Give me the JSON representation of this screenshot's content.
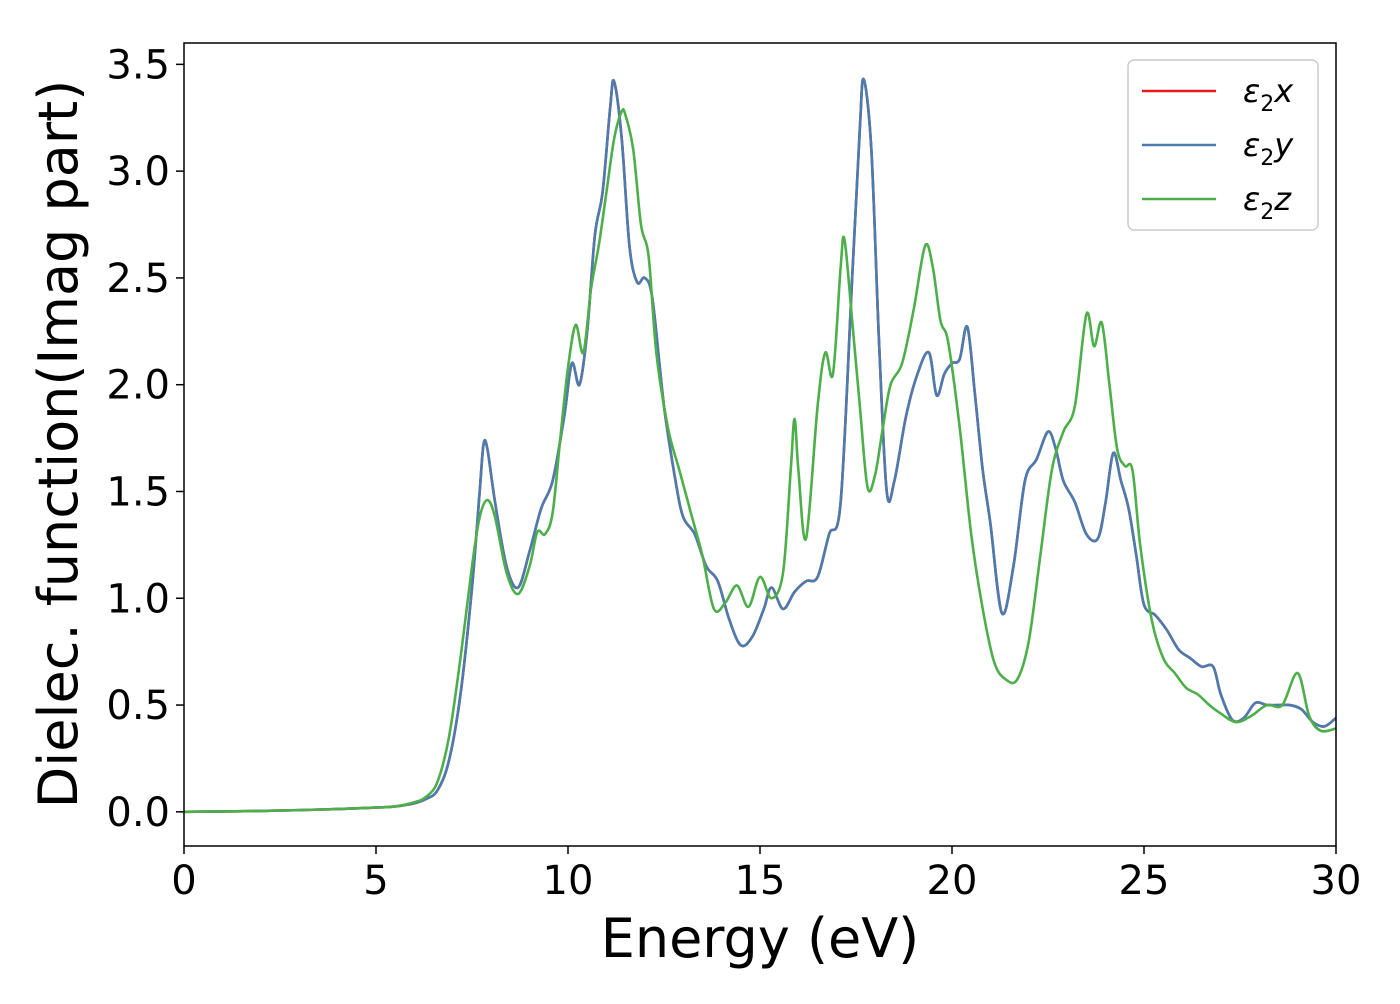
{
  "chart_data": {
    "type": "line",
    "xlabel": "Energy (eV)",
    "ylabel": "Dielec. function(Imag part)",
    "xlim": [
      0,
      30
    ],
    "ylim": [
      -0.16,
      3.6
    ],
    "xticks": [
      0,
      5,
      10,
      15,
      20,
      25,
      30
    ],
    "xtick_labels": [
      "0",
      "5",
      "10",
      "15",
      "20",
      "25",
      "30"
    ],
    "yticks": [
      0.0,
      0.5,
      1.0,
      1.5,
      2.0,
      2.5,
      3.0,
      3.5
    ],
    "ytick_labels": [
      "0.0",
      "0.5",
      "1.0",
      "1.5",
      "2.0",
      "2.5",
      "3.0",
      "3.5"
    ],
    "grid": false,
    "legend_position": "top-right",
    "series": [
      {
        "name": "ε₂x",
        "legend": {
          "base": "ε",
          "sub": "2",
          "suffix": "x"
        },
        "color": "#e41a1c",
        "x": [
          0,
          1,
          2,
          3,
          4,
          5,
          5.5,
          6,
          6.3,
          6.6,
          6.9,
          7.2,
          7.5,
          7.7,
          7.8,
          7.9,
          8.1,
          8.4,
          8.7,
          9.0,
          9.3,
          9.6,
          9.9,
          10.1,
          10.3,
          10.5,
          10.7,
          10.9,
          11.1,
          11.2,
          11.4,
          11.6,
          11.8,
          12.0,
          12.2,
          12.5,
          12.8,
          13.0,
          13.3,
          13.6,
          13.9,
          14.2,
          14.5,
          14.8,
          15.1,
          15.3,
          15.6,
          15.9,
          16.2,
          16.5,
          16.8,
          17.1,
          17.4,
          17.6,
          17.7,
          17.9,
          18.1,
          18.3,
          18.5,
          18.8,
          19.1,
          19.4,
          19.6,
          19.8,
          20.0,
          20.2,
          20.4,
          20.6,
          20.8,
          21.0,
          21.3,
          21.6,
          21.9,
          22.2,
          22.5,
          22.7,
          22.9,
          23.2,
          23.5,
          23.8,
          24.0,
          24.2,
          24.4,
          24.6,
          24.8,
          25.0,
          25.3,
          25.6,
          25.9,
          26.2,
          26.5,
          26.8,
          27.0,
          27.3,
          27.6,
          27.9,
          28.2,
          28.5,
          28.8,
          29.1,
          29.4,
          29.7,
          30.0
        ],
        "y": [
          0.0,
          0.002,
          0.004,
          0.008,
          0.013,
          0.02,
          0.025,
          0.04,
          0.06,
          0.1,
          0.24,
          0.55,
          1.05,
          1.5,
          1.72,
          1.7,
          1.45,
          1.15,
          1.05,
          1.22,
          1.42,
          1.55,
          1.85,
          2.1,
          2.0,
          2.25,
          2.7,
          2.9,
          3.3,
          3.42,
          3.15,
          2.65,
          2.48,
          2.5,
          2.4,
          1.9,
          1.55,
          1.38,
          1.3,
          1.15,
          1.08,
          0.9,
          0.78,
          0.82,
          0.95,
          1.05,
          0.95,
          1.03,
          1.08,
          1.1,
          1.3,
          1.45,
          2.5,
          3.2,
          3.43,
          3.1,
          2.2,
          1.5,
          1.55,
          1.85,
          2.05,
          2.15,
          1.95,
          2.05,
          2.1,
          2.12,
          2.27,
          1.95,
          1.6,
          1.35,
          0.93,
          1.15,
          1.55,
          1.65,
          1.78,
          1.7,
          1.55,
          1.45,
          1.3,
          1.28,
          1.45,
          1.68,
          1.55,
          1.42,
          1.2,
          0.97,
          0.92,
          0.85,
          0.76,
          0.72,
          0.68,
          0.68,
          0.55,
          0.43,
          0.44,
          0.51,
          0.5,
          0.5,
          0.5,
          0.48,
          0.42,
          0.4,
          0.44
        ]
      },
      {
        "name": "ε₂y",
        "legend": {
          "base": "ε",
          "sub": "2",
          "suffix": "y"
        },
        "color": "#4a7cb0",
        "x": [
          0,
          1,
          2,
          3,
          4,
          5,
          5.5,
          6,
          6.3,
          6.6,
          6.9,
          7.2,
          7.5,
          7.7,
          7.8,
          7.9,
          8.1,
          8.4,
          8.7,
          9.0,
          9.3,
          9.6,
          9.9,
          10.1,
          10.3,
          10.5,
          10.7,
          10.9,
          11.1,
          11.2,
          11.4,
          11.6,
          11.8,
          12.0,
          12.2,
          12.5,
          12.8,
          13.0,
          13.3,
          13.6,
          13.9,
          14.2,
          14.5,
          14.8,
          15.1,
          15.3,
          15.6,
          15.9,
          16.2,
          16.5,
          16.8,
          17.1,
          17.4,
          17.6,
          17.7,
          17.9,
          18.1,
          18.3,
          18.5,
          18.8,
          19.1,
          19.4,
          19.6,
          19.8,
          20.0,
          20.2,
          20.4,
          20.6,
          20.8,
          21.0,
          21.3,
          21.6,
          21.9,
          22.2,
          22.5,
          22.7,
          22.9,
          23.2,
          23.5,
          23.8,
          24.0,
          24.2,
          24.4,
          24.6,
          24.8,
          25.0,
          25.3,
          25.6,
          25.9,
          26.2,
          26.5,
          26.8,
          27.0,
          27.3,
          27.6,
          27.9,
          28.2,
          28.5,
          28.8,
          29.1,
          29.4,
          29.7,
          30.0
        ],
        "y": [
          0.0,
          0.002,
          0.004,
          0.008,
          0.013,
          0.02,
          0.025,
          0.04,
          0.06,
          0.1,
          0.24,
          0.55,
          1.05,
          1.5,
          1.72,
          1.7,
          1.45,
          1.15,
          1.05,
          1.22,
          1.42,
          1.55,
          1.85,
          2.1,
          2.0,
          2.25,
          2.7,
          2.9,
          3.3,
          3.42,
          3.15,
          2.65,
          2.48,
          2.5,
          2.4,
          1.9,
          1.55,
          1.38,
          1.3,
          1.15,
          1.08,
          0.9,
          0.78,
          0.82,
          0.95,
          1.05,
          0.95,
          1.03,
          1.08,
          1.1,
          1.3,
          1.45,
          2.5,
          3.2,
          3.43,
          3.1,
          2.2,
          1.5,
          1.55,
          1.85,
          2.05,
          2.15,
          1.95,
          2.05,
          2.1,
          2.12,
          2.27,
          1.95,
          1.6,
          1.35,
          0.93,
          1.15,
          1.55,
          1.65,
          1.78,
          1.7,
          1.55,
          1.45,
          1.3,
          1.28,
          1.45,
          1.68,
          1.55,
          1.42,
          1.2,
          0.97,
          0.92,
          0.85,
          0.76,
          0.72,
          0.68,
          0.68,
          0.55,
          0.43,
          0.44,
          0.51,
          0.5,
          0.5,
          0.5,
          0.48,
          0.42,
          0.4,
          0.44
        ]
      },
      {
        "name": "ε₂z",
        "legend": {
          "base": "ε",
          "sub": "2",
          "suffix": "z"
        },
        "color": "#4daf4a",
        "x": [
          0,
          1,
          2,
          3,
          4,
          5,
          5.5,
          6,
          6.3,
          6.6,
          6.9,
          7.2,
          7.5,
          7.7,
          7.9,
          8.1,
          8.4,
          8.7,
          9.0,
          9.2,
          9.4,
          9.6,
          9.8,
          10.0,
          10.2,
          10.4,
          10.6,
          10.8,
          11.0,
          11.2,
          11.4,
          11.5,
          11.7,
          11.9,
          12.1,
          12.3,
          12.6,
          12.9,
          13.2,
          13.5,
          13.8,
          14.1,
          14.4,
          14.7,
          15.0,
          15.3,
          15.6,
          15.8,
          15.9,
          16.0,
          16.2,
          16.5,
          16.7,
          16.9,
          17.1,
          17.2,
          17.4,
          17.6,
          17.8,
          18.0,
          18.2,
          18.4,
          18.7,
          19.0,
          19.3,
          19.5,
          19.7,
          19.9,
          20.2,
          20.5,
          20.8,
          21.1,
          21.4,
          21.7,
          22.0,
          22.3,
          22.6,
          22.9,
          23.2,
          23.5,
          23.7,
          23.9,
          24.1,
          24.3,
          24.5,
          24.7,
          24.9,
          25.2,
          25.5,
          25.8,
          26.1,
          26.4,
          26.7,
          27.0,
          27.4,
          27.8,
          28.2,
          28.6,
          29.0,
          29.3,
          29.6,
          30.0
        ],
        "y": [
          0.0,
          0.002,
          0.004,
          0.008,
          0.013,
          0.02,
          0.026,
          0.045,
          0.07,
          0.14,
          0.35,
          0.72,
          1.15,
          1.38,
          1.46,
          1.38,
          1.12,
          1.02,
          1.15,
          1.31,
          1.3,
          1.4,
          1.75,
          2.08,
          2.28,
          2.15,
          2.45,
          2.65,
          2.9,
          3.15,
          3.28,
          3.26,
          3.1,
          2.75,
          2.6,
          2.15,
          1.8,
          1.6,
          1.4,
          1.2,
          0.95,
          0.98,
          1.06,
          0.96,
          1.1,
          1.0,
          1.12,
          1.6,
          1.84,
          1.6,
          1.28,
          1.9,
          2.15,
          2.05,
          2.55,
          2.68,
          2.3,
          1.9,
          1.52,
          1.58,
          1.8,
          2.0,
          2.1,
          2.35,
          2.65,
          2.55,
          2.3,
          2.2,
          1.8,
          1.3,
          0.95,
          0.7,
          0.62,
          0.62,
          0.8,
          1.2,
          1.6,
          1.78,
          1.9,
          2.33,
          2.18,
          2.29,
          2.0,
          1.7,
          1.62,
          1.6,
          1.25,
          0.9,
          0.72,
          0.65,
          0.58,
          0.55,
          0.5,
          0.46,
          0.42,
          0.45,
          0.5,
          0.5,
          0.65,
          0.45,
          0.38,
          0.39
        ]
      }
    ]
  }
}
